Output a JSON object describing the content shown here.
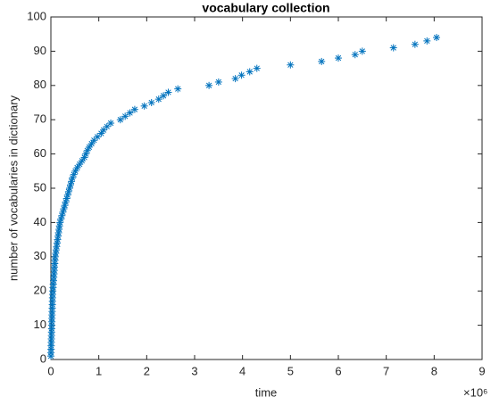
{
  "chart_data": {
    "type": "scatter",
    "title": "vocabulary collection",
    "x_label": "time",
    "y_label": "number of vocabularies in dictionary",
    "x_multiplier": "×10⁶",
    "marker": "*",
    "color": "#0072bd",
    "x": [
      0.0,
      0.002,
      0.004,
      0.006,
      0.008,
      0.01,
      0.012,
      0.014,
      0.016,
      0.018,
      0.02,
      0.022,
      0.024,
      0.026,
      0.028,
      0.03,
      0.032,
      0.034,
      0.036,
      0.04,
      0.045,
      0.05,
      0.055,
      0.06,
      0.065,
      0.07,
      0.075,
      0.08,
      0.085,
      0.09,
      0.1,
      0.11,
      0.12,
      0.13,
      0.14,
      0.15,
      0.16,
      0.17,
      0.18,
      0.19,
      0.21,
      0.23,
      0.25,
      0.27,
      0.29,
      0.31,
      0.33,
      0.35,
      0.37,
      0.39,
      0.41,
      0.43,
      0.45,
      0.48,
      0.51,
      0.55,
      0.6,
      0.65,
      0.7,
      0.73,
      0.76,
      0.8,
      0.85,
      0.9,
      0.97,
      1.05,
      1.1,
      1.17,
      1.25,
      1.45,
      1.55,
      1.65,
      1.75,
      1.95,
      2.1,
      2.25,
      2.35,
      2.45,
      2.65,
      3.3,
      3.5,
      3.85,
      3.98,
      4.15,
      4.3,
      5.0,
      5.65,
      6.0,
      6.35,
      6.5,
      7.15,
      7.6,
      7.85,
      8.05
    ],
    "values": [
      1,
      2,
      3,
      4,
      5,
      6,
      7,
      8,
      9,
      10,
      11,
      12,
      13,
      14,
      15,
      16,
      17,
      18,
      19,
      20,
      21,
      22,
      23,
      24,
      25,
      26,
      27,
      28,
      29,
      30,
      31,
      32,
      33,
      34,
      35,
      36,
      37,
      38,
      39,
      40,
      41,
      42,
      43,
      44,
      45,
      46,
      47,
      48,
      49,
      50,
      51,
      52,
      53,
      54,
      55,
      56,
      57,
      58,
      59,
      60,
      61,
      62,
      63,
      64,
      65,
      66,
      67,
      68,
      69,
      70,
      71,
      72,
      73,
      74,
      75,
      76,
      77,
      78,
      79,
      80,
      81,
      82,
      83,
      84,
      85,
      86,
      87,
      88,
      89,
      90,
      91,
      92,
      93,
      94
    ],
    "xlim": [
      0,
      9
    ],
    "xticks": [
      0,
      1,
      2,
      3,
      4,
      5,
      6,
      7,
      8,
      9
    ],
    "ylim": [
      0,
      100
    ],
    "yticks": [
      0,
      10,
      20,
      30,
      40,
      50,
      60,
      70,
      80,
      90,
      100
    ]
  }
}
